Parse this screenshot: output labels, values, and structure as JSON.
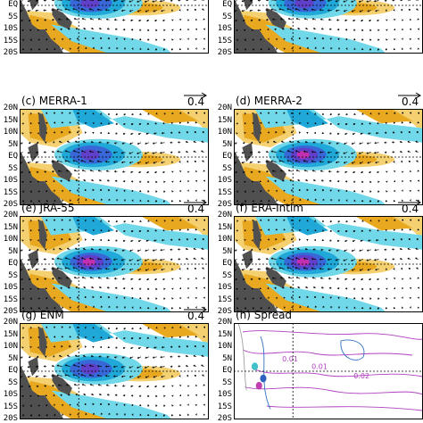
{
  "panels": [
    {
      "id": "a",
      "title": "",
      "col": 0,
      "row": 0,
      "variant": "ens",
      "ref_value": ""
    },
    {
      "id": "b",
      "title": "",
      "col": 1,
      "row": 0,
      "variant": "ens",
      "ref_value": ""
    },
    {
      "id": "c",
      "title": "(c)  MERRA-1",
      "col": 0,
      "row": 1,
      "variant": "ens",
      "ref_value": "0.4"
    },
    {
      "id": "d",
      "title": "(d)  MERRA-2",
      "col": 1,
      "row": 1,
      "variant": "strong",
      "ref_value": "0.4"
    },
    {
      "id": "e",
      "title": "(e)  JRA-55",
      "col": 0,
      "row": 2,
      "variant": "strong",
      "ref_value": "0.4"
    },
    {
      "id": "f",
      "title": "(f)  ERA-Intim",
      "col": 1,
      "row": 2,
      "variant": "strong",
      "ref_value": "0.4"
    },
    {
      "id": "g",
      "title": "(g)  ENM",
      "col": 0,
      "row": 3,
      "variant": "ens",
      "ref_value": "0.4"
    },
    {
      "id": "h",
      "title": "(h)  Spread",
      "col": 1,
      "row": 3,
      "variant": "spread",
      "ref_value": ""
    }
  ],
  "latitude_labels": [
    "20N",
    "15N",
    "10N",
    "5N",
    "EQ",
    "5S",
    "10S",
    "15S",
    "20S"
  ],
  "spread_contour_labels": [
    "0.01",
    "0.01",
    "0.02"
  ],
  "colors": {
    "positive_light": "#f5d070",
    "positive": "#e8a820",
    "negative_light": "#70d8e8",
    "negative": "#20a8d8",
    "negative_strong": "#3868d8",
    "negative_core": "#6040c8",
    "negative_max": "#c030b0",
    "land": "#505050",
    "spread_contour": "#b040c0",
    "spread_contour2": "#3070c0"
  }
}
